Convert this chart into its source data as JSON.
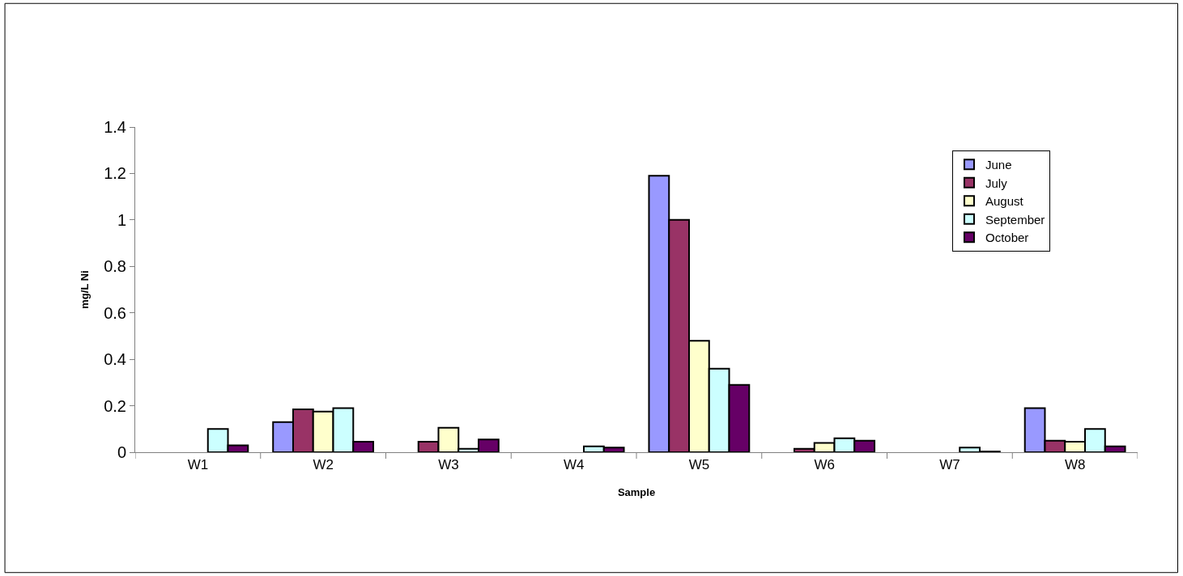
{
  "chart_data": {
    "type": "bar",
    "xlabel": "Sample",
    "ylabel": "mg/L Ni",
    "categories": [
      "W1",
      "W2",
      "W3",
      "W4",
      "W5",
      "W6",
      "W7",
      "W8"
    ],
    "series": [
      {
        "name": "June",
        "color": "#9999ff",
        "values": [
          null,
          0.13,
          null,
          null,
          1.19,
          null,
          null,
          0.19
        ]
      },
      {
        "name": "July",
        "color": "#993366",
        "values": [
          null,
          0.185,
          0.045,
          null,
          1.0,
          0.015,
          null,
          0.05
        ]
      },
      {
        "name": "August",
        "color": "#ffffcc",
        "values": [
          null,
          0.175,
          0.105,
          null,
          0.48,
          0.04,
          null,
          0.045
        ]
      },
      {
        "name": "September",
        "color": "#ccffff",
        "values": [
          0.1,
          0.19,
          0.015,
          0.025,
          0.36,
          0.06,
          0.02,
          0.1
        ]
      },
      {
        "name": "October",
        "color": "#660066",
        "values": [
          0.03,
          0.045,
          0.055,
          0.02,
          0.29,
          0.05,
          0.003,
          0.025
        ]
      }
    ],
    "ylim": [
      0,
      1.4
    ],
    "yticks": [
      0,
      0.2,
      0.4,
      0.6,
      0.8,
      1,
      1.2,
      1.4
    ],
    "legend": "top right"
  }
}
